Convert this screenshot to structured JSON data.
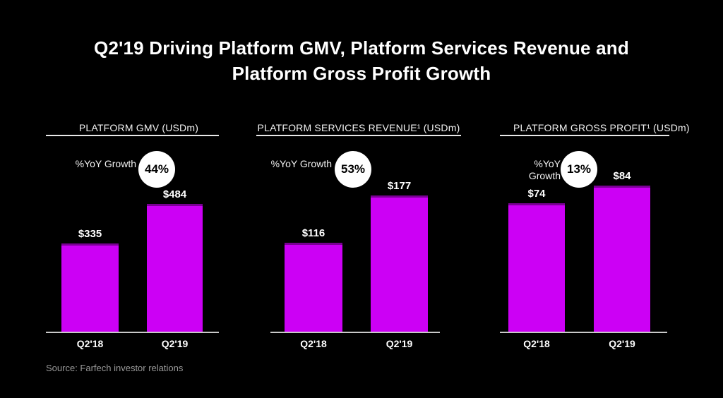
{
  "slide": {
    "title_line1": "Q2'19 Driving Platform GMV, Platform Services Revenue and",
    "title_line2": "Platform Gross Profit Growth",
    "source": "Source: Farfech investor relations"
  },
  "colors": {
    "background": "#000000",
    "text": "#FFFFFF",
    "muted_text": "#9A9A9A",
    "axis_line": "#C9C9C9",
    "badge_background": "#FFFFFF",
    "badge_text": "#000000"
  },
  "chart_data": [
    {
      "type": "bar",
      "title": "PLATFORM GMV (USDm)",
      "categories": [
        "Q2'18",
        "Q2'19"
      ],
      "values": [
        335,
        484
      ],
      "value_labels": [
        "$335",
        "$484"
      ],
      "growth": {
        "label": "%YoY Growth",
        "value_label": "44%"
      },
      "bar_color": "#CC00F5",
      "bar_cap_color": "#7A0094",
      "ylim": [
        0,
        484
      ],
      "grid": false,
      "legend": false
    },
    {
      "type": "bar",
      "title": "PLATFORM SERVICES REVENUE¹ (USDm)",
      "categories": [
        "Q2'18",
        "Q2'19"
      ],
      "values": [
        116,
        177
      ],
      "value_labels": [
        "$116",
        "$177"
      ],
      "growth": {
        "label": "%YoY Growth",
        "value_label": "53%"
      },
      "bar_color": "#CC00F5",
      "bar_cap_color": "#7A0094",
      "ylim": [
        0,
        177
      ],
      "grid": false,
      "legend": false
    },
    {
      "type": "bar",
      "title": "PLATFORM GROSS PROFIT¹ (USDm)",
      "categories": [
        "Q2'18",
        "Q2'19"
      ],
      "values": [
        74,
        84
      ],
      "value_labels": [
        "$74",
        "$84"
      ],
      "growth": {
        "label": "%YoY Growth",
        "value_label": "13%"
      },
      "bar_color": "#CC00F5",
      "bar_cap_color": "#7A0094",
      "ylim": [
        0,
        84
      ],
      "grid": false,
      "legend": false
    }
  ]
}
